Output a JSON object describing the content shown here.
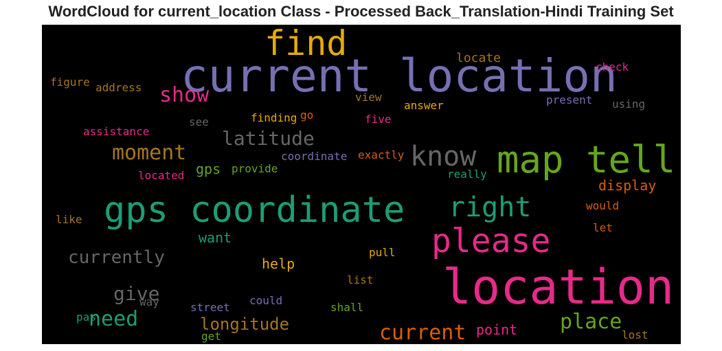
{
  "title": "WordCloud for current_location Class - Processed Back_Translation-Hindi Training Set",
  "words": {
    "current_location": {
      "text": "current location",
      "color": "#7570b3"
    },
    "location": {
      "text": "location",
      "color": "#e7298a"
    },
    "gps_coordinate": {
      "text": "gps coordinate",
      "color": "#1b9e77"
    },
    "map_tell": {
      "text": "map tell",
      "color": "#66a61e"
    },
    "please": {
      "text": "please",
      "color": "#e7298a"
    },
    "find": {
      "text": "find",
      "color": "#e6ab02"
    },
    "know": {
      "text": "know",
      "color": "#666666"
    },
    "right": {
      "text": "right",
      "color": "#1b9e77"
    },
    "show": {
      "text": "show",
      "color": "#e7298a"
    },
    "moment": {
      "text": "moment",
      "color": "#a6761d"
    },
    "latitude": {
      "text": "latitude",
      "color": "#666666"
    },
    "currently": {
      "text": "currently",
      "color": "#666666"
    },
    "need": {
      "text": "need",
      "color": "#1b9e77"
    },
    "give": {
      "text": "give",
      "color": "#666666"
    },
    "longitude": {
      "text": "longitude",
      "color": "#a6761d"
    },
    "current": {
      "text": "current",
      "color": "#d95f02"
    },
    "place": {
      "text": "place",
      "color": "#66a61e"
    },
    "point": {
      "text": "point",
      "color": "#e7298a"
    },
    "display": {
      "text": "display",
      "color": "#d95f02"
    },
    "help": {
      "text": "help",
      "color": "#e6ab02"
    },
    "want": {
      "text": "want",
      "color": "#1b9e77"
    },
    "gps": {
      "text": "gps",
      "color": "#66a61e"
    },
    "provide": {
      "text": "provide",
      "color": "#66a61e"
    },
    "coordinate": {
      "text": "coordinate",
      "color": "#7570b3"
    },
    "exactly": {
      "text": "exactly",
      "color": "#d95f02"
    },
    "really": {
      "text": "really",
      "color": "#1b9e77"
    },
    "located": {
      "text": "located",
      "color": "#e7298a"
    },
    "assistance": {
      "text": "assistance",
      "color": "#e7298a"
    },
    "see": {
      "text": "see",
      "color": "#666666"
    },
    "finding": {
      "text": "finding",
      "color": "#e6ab02"
    },
    "go": {
      "text": "go",
      "color": "#d95f02"
    },
    "five": {
      "text": "five",
      "color": "#e7298a"
    },
    "view": {
      "text": "view",
      "color": "#a6761d"
    },
    "answer": {
      "text": "answer",
      "color": "#e6ab02"
    },
    "present": {
      "text": "present",
      "color": "#7570b3"
    },
    "using": {
      "text": "using",
      "color": "#666666"
    },
    "locate": {
      "text": "locate",
      "color": "#a6761d"
    },
    "check": {
      "text": "check",
      "color": "#e7298a"
    },
    "figure": {
      "text": "figure",
      "color": "#a6761d"
    },
    "address": {
      "text": "address",
      "color": "#a6761d"
    },
    "like": {
      "text": "like",
      "color": "#a6761d"
    },
    "would": {
      "text": "would",
      "color": "#d95f02"
    },
    "let": {
      "text": "let",
      "color": "#d95f02"
    },
    "pull": {
      "text": "pull",
      "color": "#e6ab02"
    },
    "list": {
      "text": "list",
      "color": "#a6761d"
    },
    "shall": {
      "text": "shall",
      "color": "#66a61e"
    },
    "street": {
      "text": "street",
      "color": "#7570b3"
    },
    "could": {
      "text": "could",
      "color": "#7570b3"
    },
    "way": {
      "text": "way",
      "color": "#666666"
    },
    "pas": {
      "text": "pas",
      "color": "#1b9e77"
    },
    "get": {
      "text": "get",
      "color": "#66a61e"
    },
    "lost": {
      "text": "lost",
      "color": "#a6761d"
    }
  }
}
